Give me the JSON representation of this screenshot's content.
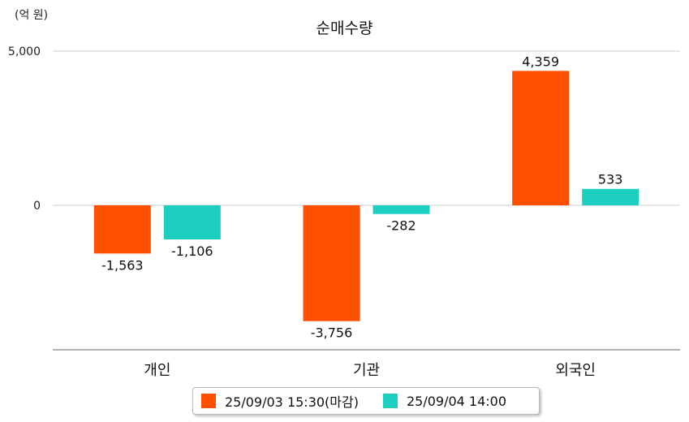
{
  "chart_data": {
    "type": "bar",
    "title": "순매수량",
    "unit_label": "(억 원)",
    "categories": [
      "개인",
      "기관",
      "외국인"
    ],
    "series": [
      {
        "name": "25/09/03 15:30(마감)",
        "color": "#ff5000",
        "values": [
          -1563,
          -3756,
          4359
        ],
        "labels": [
          "-1,563",
          "-3,756",
          "4,359"
        ]
      },
      {
        "name": "25/09/04 14:00",
        "color": "#1ecfbf",
        "values": [
          -1106,
          -282,
          533
        ],
        "labels": [
          "-1,106",
          "-282",
          "533"
        ]
      }
    ],
    "yticks": [
      {
        "value": 5000,
        "label": "5,000"
      },
      {
        "value": 0,
        "label": "0"
      }
    ],
    "ylim": [
      -4500,
      5000
    ],
    "grid": true,
    "legend_position": "bottom"
  }
}
